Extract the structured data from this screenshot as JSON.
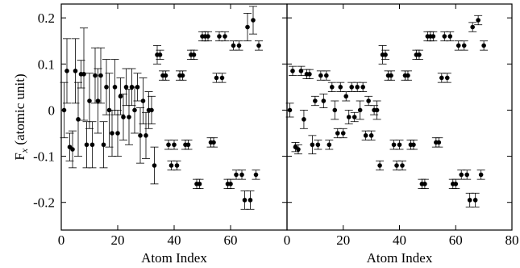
{
  "chart_data": [
    {
      "type": "scatter",
      "xlabel": "Atom Index",
      "ylabel": [
        "F",
        "x",
        " (atomic unit)"
      ],
      "xlim": [
        0,
        80
      ],
      "xticks": [
        0,
        20,
        40,
        60
      ],
      "ylim": [
        -0.26,
        0.23
      ],
      "yticks": [
        0.2,
        0.1,
        0,
        -0.1,
        -0.2
      ],
      "color": "#000000",
      "x": [
        1,
        2,
        3,
        4,
        5,
        6,
        7,
        8,
        9,
        10,
        11,
        12,
        13,
        14,
        15,
        16,
        17,
        18,
        19,
        20,
        21,
        22,
        23,
        24,
        25,
        26,
        27,
        28,
        29,
        30,
        31,
        32,
        33,
        34,
        35,
        36,
        37,
        38,
        39,
        40,
        41,
        42,
        43,
        44,
        45,
        46,
        47,
        48,
        49,
        50,
        51,
        52,
        53,
        54,
        55,
        56,
        57,
        58,
        59,
        60,
        61,
        62,
        63,
        64,
        65,
        66,
        67,
        68,
        69,
        70
      ],
      "values": [
        0.0,
        0.085,
        -0.08,
        -0.085,
        0.085,
        -0.02,
        0.078,
        0.078,
        -0.075,
        0.02,
        -0.075,
        0.075,
        0.02,
        0.075,
        -0.075,
        0.05,
        0.0,
        -0.05,
        0.05,
        -0.05,
        0.03,
        -0.015,
        0.05,
        -0.015,
        0.05,
        0.0,
        0.05,
        -0.055,
        0.02,
        -0.055,
        0.0,
        0.0,
        -0.12,
        0.12,
        0.12,
        0.075,
        0.075,
        -0.075,
        -0.12,
        -0.075,
        -0.12,
        0.075,
        0.075,
        -0.075,
        -0.075,
        0.12,
        0.12,
        -0.16,
        -0.16,
        0.16,
        0.16,
        0.16,
        -0.07,
        -0.07,
        0.07,
        0.16,
        0.07,
        0.16,
        -0.16,
        -0.16,
        0.14,
        -0.14,
        0.14,
        -0.14,
        -0.195,
        0.18,
        -0.195,
        0.195,
        -0.14,
        0.14
      ],
      "errors": [
        0.06,
        0.07,
        0.03,
        0.04,
        0.07,
        0.08,
        0.03,
        0.1,
        0.05,
        0.06,
        0.05,
        0.06,
        0.07,
        0.06,
        0.05,
        0.06,
        0.08,
        0.05,
        0.06,
        0.05,
        0.04,
        0.05,
        0.04,
        0.06,
        0.04,
        0.05,
        0.03,
        0.06,
        0.05,
        0.05,
        0.04,
        0.03,
        0.04,
        0.02,
        0.01,
        0.01,
        0.01,
        0.01,
        0.01,
        0.01,
        0.01,
        0.01,
        0.01,
        0.01,
        0.01,
        0.01,
        0.01,
        0.01,
        0.01,
        0.01,
        0.01,
        0.01,
        0.01,
        0.01,
        0.01,
        0.01,
        0.01,
        0.01,
        0.01,
        0.01,
        0.01,
        0.01,
        0.01,
        0.01,
        0.02,
        0.03,
        0.02,
        0.03,
        0.01,
        0.01
      ]
    },
    {
      "type": "scatter",
      "xlabel": "Atom Index",
      "xlim": [
        0,
        80
      ],
      "xticks": [
        0,
        20,
        40,
        60,
        80
      ],
      "ylim": [
        -0.26,
        0.23
      ],
      "yticks": [
        0.2,
        0.1,
        0,
        -0.1,
        -0.2
      ],
      "color": "#000000",
      "x": [
        1,
        2,
        3,
        4,
        5,
        6,
        7,
        8,
        9,
        10,
        11,
        12,
        13,
        14,
        15,
        16,
        17,
        18,
        19,
        20,
        21,
        22,
        23,
        24,
        25,
        26,
        27,
        28,
        29,
        30,
        31,
        32,
        33,
        34,
        35,
        36,
        37,
        38,
        39,
        40,
        41,
        42,
        43,
        44,
        45,
        46,
        47,
        48,
        49,
        50,
        51,
        52,
        53,
        54,
        55,
        56,
        57,
        58,
        59,
        60,
        61,
        62,
        63,
        64,
        65,
        66,
        67,
        68,
        69,
        70
      ],
      "values": [
        0.0,
        0.085,
        -0.08,
        -0.085,
        0.085,
        -0.02,
        0.078,
        0.078,
        -0.075,
        0.02,
        -0.075,
        0.075,
        0.02,
        0.075,
        -0.075,
        0.05,
        0.0,
        -0.05,
        0.05,
        -0.05,
        0.03,
        -0.015,
        0.05,
        -0.015,
        0.05,
        0.0,
        0.05,
        -0.055,
        0.02,
        -0.055,
        0.0,
        0.0,
        -0.12,
        0.12,
        0.12,
        0.075,
        0.075,
        -0.075,
        -0.12,
        -0.075,
        -0.12,
        0.075,
        0.075,
        -0.075,
        -0.075,
        0.12,
        0.12,
        -0.16,
        -0.16,
        0.16,
        0.16,
        0.16,
        -0.07,
        -0.07,
        0.07,
        0.16,
        0.07,
        0.16,
        -0.16,
        -0.16,
        0.14,
        -0.14,
        0.14,
        -0.14,
        -0.195,
        0.18,
        -0.195,
        0.195,
        -0.14,
        0.14
      ],
      "errors": [
        0.015,
        0.01,
        0.01,
        0.01,
        0.01,
        0.02,
        0.01,
        0.01,
        0.02,
        0.01,
        0.01,
        0.01,
        0.015,
        0.01,
        0.01,
        0.01,
        0.02,
        0.01,
        0.01,
        0.01,
        0.01,
        0.015,
        0.01,
        0.01,
        0.01,
        0.02,
        0.01,
        0.01,
        0.01,
        0.01,
        0.01,
        0.02,
        0.01,
        0.02,
        0.01,
        0.01,
        0.01,
        0.01,
        0.01,
        0.01,
        0.01,
        0.01,
        0.01,
        0.01,
        0.01,
        0.01,
        0.01,
        0.01,
        0.01,
        0.01,
        0.01,
        0.01,
        0.01,
        0.01,
        0.01,
        0.01,
        0.01,
        0.01,
        0.01,
        0.01,
        0.01,
        0.01,
        0.01,
        0.01,
        0.015,
        0.01,
        0.015,
        0.01,
        0.01,
        0.01
      ]
    }
  ]
}
